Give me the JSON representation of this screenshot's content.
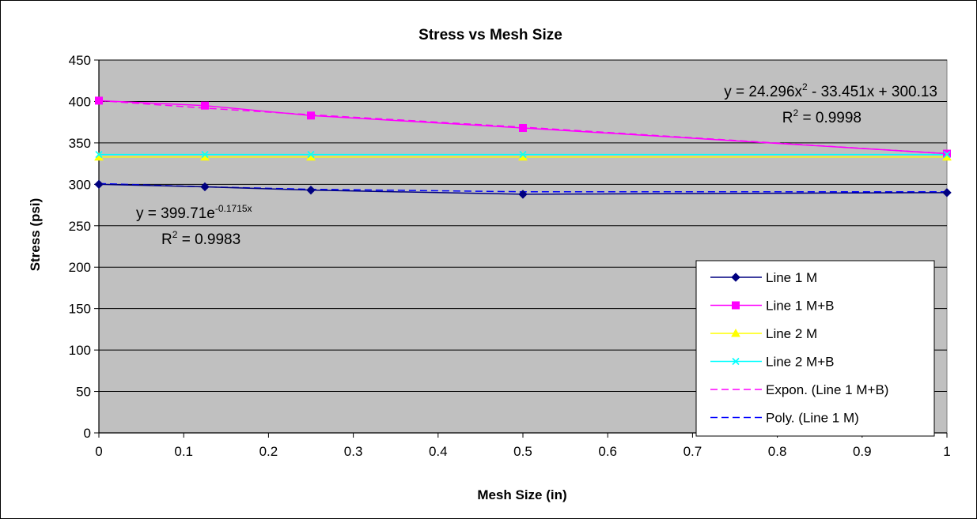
{
  "chart_data": {
    "type": "line",
    "title": "Stress vs Mesh Size",
    "xlabel": "Mesh Size (in)",
    "ylabel": "Stress (psi)",
    "xlim": [
      0,
      1
    ],
    "ylim": [
      0,
      450
    ],
    "xticks": [
      "0",
      "0.1",
      "0.2",
      "0.3",
      "0.4",
      "0.5",
      "0.6",
      "0.7",
      "0.8",
      "0.9",
      "1"
    ],
    "yticks": [
      "0",
      "50",
      "100",
      "150",
      "200",
      "250",
      "300",
      "350",
      "400",
      "450"
    ],
    "grid": "horizontal",
    "plot_background": "#c0c0c0",
    "legend_position": "bottom-right",
    "series": [
      {
        "name": "Line 1 M",
        "x": [
          0,
          0.125,
          0.25,
          0.5,
          1
        ],
        "y": [
          300,
          297,
          293,
          288,
          290
        ],
        "color": "#000080",
        "marker": "diamond"
      },
      {
        "name": "Line 1 M+B",
        "x": [
          0,
          0.125,
          0.25,
          0.5,
          1
        ],
        "y": [
          401,
          395,
          383,
          368,
          337
        ],
        "color": "#ff00ff",
        "marker": "square"
      },
      {
        "name": "Line 2 M",
        "x": [
          0,
          0.125,
          0.25,
          0.5,
          1
        ],
        "y": [
          333,
          333,
          333,
          333,
          333
        ],
        "color": "#ffff00",
        "marker": "triangle"
      },
      {
        "name": "Line 2 M+B",
        "x": [
          0,
          0.125,
          0.25,
          0.5,
          1
        ],
        "y": [
          336,
          336,
          336,
          336,
          336
        ],
        "color": "#00ffff",
        "marker": "x"
      }
    ],
    "trendlines": [
      {
        "name": "Expon. (Line 1 M+B)",
        "color": "#ff00ff",
        "dash": true,
        "x": [
          0,
          0.125,
          0.25,
          0.5,
          1
        ],
        "y": [
          401,
          392,
          384,
          369,
          337
        ]
      },
      {
        "name": "Poly. (Line 1 M)",
        "color": "#0000ff",
        "dash": true,
        "x": [
          0,
          0.125,
          0.25,
          0.5,
          1
        ],
        "y": [
          301,
          297,
          294,
          291,
          291
        ]
      }
    ],
    "annotations": [
      {
        "id": "poly-eq",
        "base": "y = 24.296x",
        "sup": "2",
        "rest": " - 33.451x + 300.13"
      },
      {
        "id": "poly-r2",
        "base": "R",
        "sup": "2",
        "rest": " = 0.9998"
      },
      {
        "id": "exp-eq",
        "base": "y = 399.71e",
        "sup": "-0.1715x",
        "rest": ""
      },
      {
        "id": "exp-r2",
        "base": "R",
        "sup": "2",
        "rest": " = 0.9983"
      }
    ]
  }
}
